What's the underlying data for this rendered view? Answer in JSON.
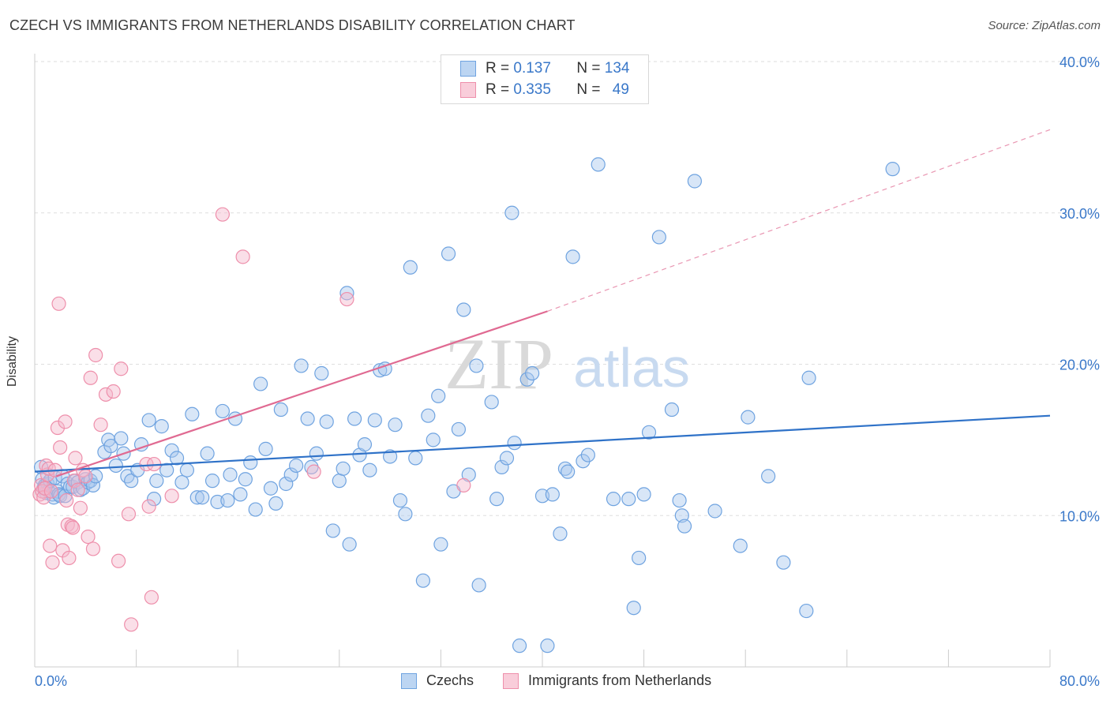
{
  "header": {
    "title": "CZECH VS IMMIGRANTS FROM NETHERLANDS DISABILITY CORRELATION CHART",
    "source": "Source: ZipAtlas.com"
  },
  "watermark": {
    "zip": "ZIP",
    "atlas": "atlas"
  },
  "legend_top": [
    {
      "r_label": "R =",
      "r_value": "0.137",
      "n_label": "N =",
      "n_value": "134",
      "color": "#a8c8ee"
    },
    {
      "r_label": "R =",
      "r_value": "0.335",
      "n_label": "N =",
      "n_value": "49",
      "color": "#f5b8cb"
    }
  ],
  "legend_bottom": [
    {
      "label": "Czechs",
      "color": "#a8c8ee"
    },
    {
      "label": "Immigrants from Netherlands",
      "color": "#f5b8cb"
    }
  ],
  "chart_data": {
    "type": "scatter",
    "title": "CZECH VS IMMIGRANTS FROM NETHERLANDS DISABILITY CORRELATION CHART",
    "xlabel": "",
    "ylabel": "Disability",
    "xlim": [
      0,
      80
    ],
    "ylim": [
      0,
      40
    ],
    "x_tick_labels": [
      "0.0%",
      "80.0%"
    ],
    "y_tick_labels": [
      "10.0%",
      "20.0%",
      "30.0%",
      "40.0%"
    ],
    "y_ticks": [
      10,
      20,
      30,
      40
    ],
    "grid": "horizontal dashed",
    "legend_placement": "top-center",
    "series": [
      {
        "name": "Czechs",
        "color": "#6fa3e0",
        "fill": "#a8c8ee",
        "trend": {
          "x": [
            0,
            80
          ],
          "y": [
            12.9,
            16.6
          ],
          "style": "solid",
          "color": "#2f72c8"
        },
        "points": [
          [
            0.5,
            13.2
          ],
          [
            0.6,
            12.4
          ],
          [
            0.7,
            11.8
          ],
          [
            0.8,
            12.0
          ],
          [
            0.9,
            11.5
          ],
          [
            1.0,
            12.1
          ],
          [
            1.1,
            11.6
          ],
          [
            1.2,
            12.3
          ],
          [
            1.4,
            11.4
          ],
          [
            1.5,
            11.2
          ],
          [
            1.6,
            12.5
          ],
          [
            1.8,
            11.6
          ],
          [
            1.9,
            11.4
          ],
          [
            2.0,
            11.3
          ],
          [
            2.2,
            12.6
          ],
          [
            2.4,
            11.3
          ],
          [
            2.6,
            12.1
          ],
          [
            2.8,
            11.9
          ],
          [
            3.0,
            11.9
          ],
          [
            3.2,
            12.3
          ],
          [
            3.4,
            12.2
          ],
          [
            3.6,
            11.7
          ],
          [
            3.8,
            11.8
          ],
          [
            4.0,
            12.4
          ],
          [
            4.2,
            12.2
          ],
          [
            4.4,
            12.3
          ],
          [
            4.6,
            12.0
          ],
          [
            4.8,
            12.6
          ],
          [
            5.5,
            14.2
          ],
          [
            5.8,
            15.0
          ],
          [
            6.0,
            14.6
          ],
          [
            6.4,
            13.3
          ],
          [
            6.8,
            15.1
          ],
          [
            7.0,
            14.1
          ],
          [
            7.3,
            12.6
          ],
          [
            7.6,
            12.3
          ],
          [
            8.1,
            13.0
          ],
          [
            8.4,
            14.7
          ],
          [
            9.0,
            16.3
          ],
          [
            9.4,
            11.1
          ],
          [
            9.6,
            12.3
          ],
          [
            10.0,
            15.9
          ],
          [
            10.4,
            13.0
          ],
          [
            10.8,
            14.3
          ],
          [
            11.2,
            13.8
          ],
          [
            11.6,
            12.2
          ],
          [
            12.0,
            13.0
          ],
          [
            12.4,
            16.7
          ],
          [
            12.8,
            11.2
          ],
          [
            13.2,
            11.2
          ],
          [
            13.6,
            14.1
          ],
          [
            14.0,
            12.3
          ],
          [
            14.4,
            10.9
          ],
          [
            14.8,
            16.9
          ],
          [
            15.2,
            11.0
          ],
          [
            15.4,
            12.7
          ],
          [
            15.8,
            16.4
          ],
          [
            16.2,
            11.4
          ],
          [
            16.6,
            12.4
          ],
          [
            17.0,
            13.5
          ],
          [
            17.4,
            10.4
          ],
          [
            17.8,
            18.7
          ],
          [
            18.2,
            14.4
          ],
          [
            18.6,
            11.8
          ],
          [
            19.0,
            10.8
          ],
          [
            19.4,
            17.0
          ],
          [
            19.8,
            12.1
          ],
          [
            20.2,
            12.7
          ],
          [
            20.6,
            13.3
          ],
          [
            21.0,
            19.9
          ],
          [
            21.5,
            16.4
          ],
          [
            21.8,
            13.2
          ],
          [
            22.2,
            14.1
          ],
          [
            22.6,
            19.4
          ],
          [
            23.0,
            16.2
          ],
          [
            23.5,
            9.0
          ],
          [
            24.0,
            12.3
          ],
          [
            24.3,
            13.1
          ],
          [
            24.6,
            24.7
          ],
          [
            24.8,
            8.1
          ],
          [
            25.2,
            16.4
          ],
          [
            25.6,
            14.0
          ],
          [
            26.0,
            14.7
          ],
          [
            26.4,
            13.0
          ],
          [
            26.8,
            16.3
          ],
          [
            27.2,
            19.6
          ],
          [
            27.6,
            19.7
          ],
          [
            28.0,
            13.9
          ],
          [
            28.4,
            16.0
          ],
          [
            28.8,
            11.0
          ],
          [
            29.2,
            10.1
          ],
          [
            29.6,
            26.4
          ],
          [
            30.0,
            13.8
          ],
          [
            30.6,
            5.7
          ],
          [
            31.0,
            16.6
          ],
          [
            31.4,
            15.0
          ],
          [
            31.8,
            17.9
          ],
          [
            32.0,
            8.1
          ],
          [
            32.6,
            27.3
          ],
          [
            33.0,
            11.6
          ],
          [
            33.4,
            15.7
          ],
          [
            33.8,
            23.6
          ],
          [
            34.2,
            12.7
          ],
          [
            34.8,
            19.9
          ],
          [
            35.0,
            5.4
          ],
          [
            36.0,
            17.5
          ],
          [
            36.4,
            11.1
          ],
          [
            36.8,
            13.2
          ],
          [
            37.2,
            13.8
          ],
          [
            37.6,
            30.0
          ],
          [
            37.8,
            14.8
          ],
          [
            38.2,
            1.4
          ],
          [
            38.8,
            19.0
          ],
          [
            39.2,
            19.4
          ],
          [
            40.0,
            11.3
          ],
          [
            40.4,
            1.4
          ],
          [
            40.8,
            11.4
          ],
          [
            41.4,
            8.8
          ],
          [
            41.8,
            13.1
          ],
          [
            42.0,
            12.9
          ],
          [
            42.4,
            27.1
          ],
          [
            43.2,
            13.6
          ],
          [
            43.6,
            14.0
          ],
          [
            44.4,
            33.2
          ],
          [
            45.6,
            11.1
          ],
          [
            46.8,
            11.1
          ],
          [
            47.2,
            3.9
          ],
          [
            47.6,
            7.2
          ],
          [
            48.0,
            11.4
          ],
          [
            48.4,
            15.5
          ],
          [
            49.2,
            28.4
          ],
          [
            50.2,
            17.0
          ],
          [
            50.8,
            11.0
          ],
          [
            51.0,
            10.0
          ],
          [
            51.2,
            9.3
          ],
          [
            52.0,
            32.1
          ],
          [
            53.6,
            10.3
          ],
          [
            55.6,
            8.0
          ],
          [
            56.2,
            16.5
          ],
          [
            57.8,
            12.6
          ],
          [
            59.0,
            6.9
          ],
          [
            60.8,
            3.7
          ],
          [
            61.0,
            19.1
          ],
          [
            67.6,
            32.9
          ]
        ]
      },
      {
        "name": "Immigrants from Netherlands",
        "color": "#ee8fab",
        "fill": "#f5b8cb",
        "trend": {
          "x": [
            1.7,
            40.4
          ],
          "y": [
            12.6,
            23.5
          ],
          "style": "solid",
          "color": "#e06a92",
          "extension": {
            "x": [
              40.4,
              80
            ],
            "y": [
              23.5,
              35.5
            ],
            "style": "dashed"
          }
        },
        "points": [
          [
            0.4,
            11.4
          ],
          [
            0.5,
            12.0
          ],
          [
            0.6,
            11.6
          ],
          [
            0.7,
            11.2
          ],
          [
            0.8,
            11.8
          ],
          [
            0.9,
            13.3
          ],
          [
            1.0,
            12.7
          ],
          [
            1.1,
            13.1
          ],
          [
            1.2,
            8.0
          ],
          [
            1.3,
            11.6
          ],
          [
            1.4,
            6.9
          ],
          [
            1.6,
            13.0
          ],
          [
            1.8,
            15.8
          ],
          [
            1.9,
            24.0
          ],
          [
            2.0,
            14.5
          ],
          [
            2.2,
            7.7
          ],
          [
            2.4,
            16.2
          ],
          [
            2.5,
            11.0
          ],
          [
            2.6,
            9.4
          ],
          [
            2.7,
            7.2
          ],
          [
            2.9,
            9.3
          ],
          [
            3.0,
            9.2
          ],
          [
            3.1,
            12.3
          ],
          [
            3.2,
            13.8
          ],
          [
            3.4,
            11.7
          ],
          [
            3.6,
            10.5
          ],
          [
            3.8,
            13.0
          ],
          [
            4.0,
            12.6
          ],
          [
            4.2,
            8.6
          ],
          [
            4.4,
            19.1
          ],
          [
            4.6,
            7.8
          ],
          [
            4.8,
            20.6
          ],
          [
            5.2,
            16.0
          ],
          [
            5.6,
            18.0
          ],
          [
            6.2,
            18.2
          ],
          [
            6.6,
            7.0
          ],
          [
            6.8,
            19.7
          ],
          [
            7.4,
            10.1
          ],
          [
            7.6,
            2.8
          ],
          [
            8.8,
            13.4
          ],
          [
            9.0,
            10.6
          ],
          [
            9.2,
            4.6
          ],
          [
            9.4,
            13.4
          ],
          [
            10.8,
            11.3
          ],
          [
            14.8,
            29.9
          ],
          [
            16.4,
            27.1
          ],
          [
            24.6,
            24.3
          ],
          [
            33.8,
            12.0
          ],
          [
            22.0,
            12.9
          ]
        ]
      }
    ]
  }
}
